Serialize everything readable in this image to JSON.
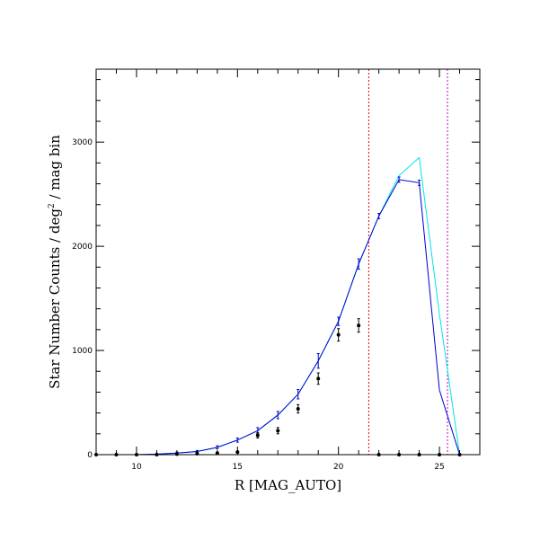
{
  "chart_data": {
    "type": "line",
    "xlabel": "R [MAG_AUTO]",
    "ylabel_main": "Star Number Counts / deg",
    "ylabel_sup": "2",
    "ylabel_tail": " / mag bin",
    "xlim": [
      8,
      27
    ],
    "ylim": [
      0,
      3700
    ],
    "x_ticks": [
      10,
      15,
      20,
      25
    ],
    "y_ticks": [
      0,
      1000,
      2000,
      3000
    ],
    "colors": {
      "model_total": "#00e5e5",
      "model_detected": "#0000cc",
      "observed": "#000000",
      "limit_red": "#e00000",
      "limit_magenta": "#c000c0"
    },
    "vlines": [
      {
        "name": "limit_red",
        "x": 21.5
      },
      {
        "name": "limit_magenta",
        "x": 25.4
      }
    ],
    "series": [
      {
        "key": "model_total",
        "x": [
          8,
          9,
          10,
          11,
          12,
          13,
          14,
          15,
          16,
          17,
          18,
          19,
          20,
          21,
          22,
          23,
          24,
          25,
          26
        ],
        "y": [
          0,
          0,
          0,
          5,
          15,
          30,
          70,
          140,
          230,
          380,
          580,
          900,
          1280,
          1830,
          2290,
          2680,
          2850,
          1350,
          0
        ]
      },
      {
        "key": "model_detected",
        "x": [
          8,
          9,
          10,
          11,
          12,
          13,
          14,
          15,
          16,
          17,
          18,
          19,
          20,
          21,
          22,
          23,
          24,
          25,
          26
        ],
        "y": [
          0,
          0,
          0,
          5,
          15,
          30,
          70,
          140,
          230,
          380,
          580,
          900,
          1280,
          1830,
          2290,
          2640,
          2610,
          620,
          0
        ],
        "err": [
          0,
          0,
          0,
          5,
          10,
          10,
          15,
          20,
          30,
          35,
          45,
          70,
          40,
          50,
          25,
          25,
          25,
          0,
          0
        ]
      },
      {
        "key": "observed",
        "x": [
          8,
          9,
          10,
          11,
          12,
          13,
          14,
          15,
          16,
          17,
          18,
          19,
          20,
          21,
          22,
          23,
          24,
          25,
          26
        ],
        "y": [
          0,
          0,
          0,
          0,
          5,
          10,
          15,
          25,
          185,
          230,
          440,
          730,
          1150,
          1240,
          0,
          0,
          0,
          0,
          0
        ],
        "err": [
          0,
          0,
          0,
          0,
          5,
          5,
          5,
          10,
          25,
          30,
          40,
          55,
          60,
          65,
          0,
          0,
          0,
          0,
          0
        ]
      }
    ]
  }
}
